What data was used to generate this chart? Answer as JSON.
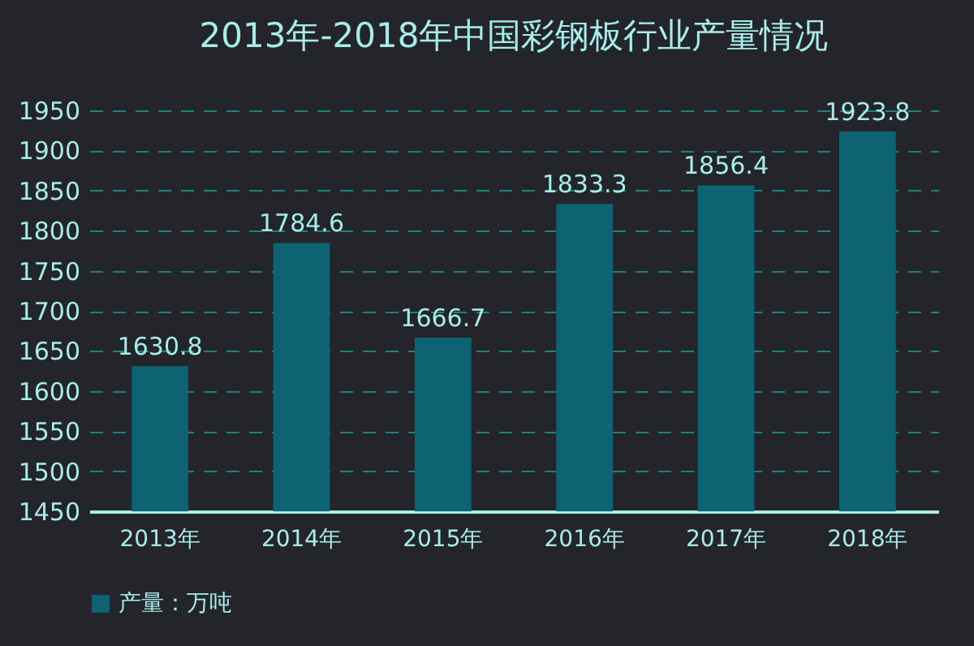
{
  "chart_data": {
    "type": "bar",
    "title": "2013年-2018年中国彩钢板行业产量情况",
    "categories": [
      "2013年",
      "2014年",
      "2015年",
      "2016年",
      "2017年",
      "2018年"
    ],
    "series": [
      {
        "name": "产量：万吨",
        "color": "#0e6373",
        "values": [
          1630.8,
          1784.6,
          1666.7,
          1833.3,
          1856.4,
          1923.8
        ]
      }
    ],
    "ylim": [
      1450,
      1950
    ],
    "yticks": [
      1450,
      1500,
      1550,
      1600,
      1650,
      1700,
      1750,
      1800,
      1850,
      1900,
      1950
    ],
    "grid": "y",
    "legend": "bottom",
    "data_labels": true
  }
}
